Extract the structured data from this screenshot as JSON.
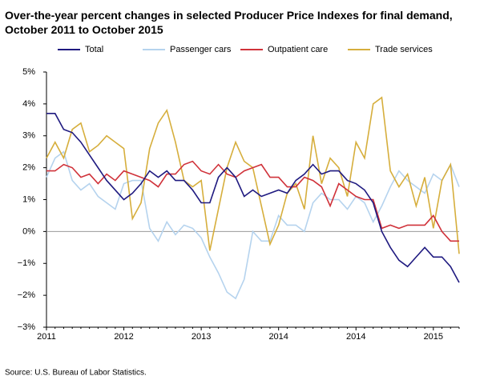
{
  "chart_data": {
    "type": "line",
    "title": "Over-the-year percent changes in selected Producer Price Indexes for final demand, October 2011 to October 2015",
    "source": "Source: U.S. Bureau of Labor Statistics.",
    "categories": [
      "2011",
      null,
      null,
      null,
      null,
      null,
      null,
      null,
      null,
      "2012",
      null,
      null,
      null,
      null,
      null,
      null,
      null,
      null,
      "2013",
      null,
      null,
      null,
      null,
      null,
      null,
      null,
      null,
      "2014",
      null,
      null,
      null,
      null,
      null,
      null,
      null,
      null,
      "2014",
      null,
      null,
      null,
      null,
      null,
      null,
      null,
      null,
      "2015",
      null,
      null,
      null
    ],
    "series": [
      {
        "name": "Total",
        "color": "#1f1a80",
        "values": [
          3.7,
          3.7,
          3.2,
          3.1,
          2.8,
          2.4,
          2.0,
          1.6,
          1.3,
          1.0,
          1.2,
          1.5,
          1.9,
          1.7,
          1.9,
          1.6,
          1.6,
          1.3,
          0.9,
          0.9,
          1.7,
          2.0,
          1.7,
          1.1,
          1.3,
          1.1,
          1.2,
          1.3,
          1.2,
          1.6,
          1.8,
          2.1,
          1.8,
          1.9,
          1.9,
          1.6,
          1.5,
          1.3,
          0.9,
          0.0,
          -0.5,
          -0.9,
          -1.1,
          -0.8,
          -0.5,
          -0.8,
          -0.8,
          -1.1,
          -1.6
        ]
      },
      {
        "name": "Passenger cars",
        "color": "#b5d3ee",
        "values": [
          1.7,
          2.3,
          2.5,
          1.6,
          1.3,
          1.5,
          1.1,
          0.9,
          0.7,
          1.5,
          1.6,
          1.6,
          0.1,
          -0.3,
          0.3,
          -0.1,
          0.2,
          0.1,
          -0.2,
          -0.8,
          -1.3,
          -1.9,
          -2.1,
          -1.5,
          0.0,
          -0.3,
          -0.3,
          0.5,
          0.2,
          0.2,
          0.0,
          0.9,
          1.2,
          1.0,
          1.0,
          0.7,
          1.1,
          0.9,
          0.3,
          0.8,
          1.4,
          1.9,
          1.6,
          1.4,
          1.2,
          1.8,
          1.6,
          2.1,
          1.4
        ]
      },
      {
        "name": "Outpatient care",
        "color": "#d0323a",
        "values": [
          1.9,
          1.9,
          2.1,
          2.0,
          1.7,
          1.8,
          1.5,
          1.8,
          1.6,
          1.9,
          1.8,
          1.7,
          1.6,
          1.4,
          1.8,
          1.8,
          2.1,
          2.2,
          1.9,
          1.8,
          2.1,
          1.8,
          1.7,
          1.9,
          2.0,
          2.1,
          1.7,
          1.7,
          1.4,
          1.4,
          1.7,
          1.6,
          1.4,
          0.8,
          1.5,
          1.3,
          1.1,
          1.0,
          1.0,
          0.1,
          0.2,
          0.1,
          0.2,
          0.2,
          0.2,
          0.5,
          0.0,
          -0.3,
          -0.3
        ]
      },
      {
        "name": "Trade services",
        "color": "#d6ae3c",
        "values": [
          2.3,
          2.8,
          2.3,
          3.2,
          3.4,
          2.5,
          2.7,
          3.0,
          2.8,
          2.6,
          0.4,
          0.9,
          2.6,
          3.4,
          3.8,
          2.8,
          1.6,
          1.4,
          1.6,
          -0.6,
          0.7,
          2.0,
          2.8,
          2.2,
          2.0,
          0.8,
          -0.4,
          0.2,
          1.2,
          1.5,
          0.7,
          3.0,
          1.5,
          2.3,
          2.0,
          1.1,
          2.8,
          2.3,
          4.0,
          4.2,
          1.9,
          1.4,
          1.8,
          0.8,
          1.7,
          0.1,
          1.6,
          2.1,
          -0.7
        ]
      }
    ],
    "ylim": [
      -3,
      5
    ],
    "yticks": [
      {
        "value": -3,
        "label": "−3%"
      },
      {
        "value": -2,
        "label": "−2%"
      },
      {
        "value": -1,
        "label": "−1%"
      },
      {
        "value": 0,
        "label": "0%"
      },
      {
        "value": 1,
        "label": "1%"
      },
      {
        "value": 2,
        "label": "2%"
      },
      {
        "value": 3,
        "label": "3%"
      },
      {
        "value": 4,
        "label": "4%"
      },
      {
        "value": 5,
        "label": "5%"
      }
    ],
    "legend": "top"
  }
}
